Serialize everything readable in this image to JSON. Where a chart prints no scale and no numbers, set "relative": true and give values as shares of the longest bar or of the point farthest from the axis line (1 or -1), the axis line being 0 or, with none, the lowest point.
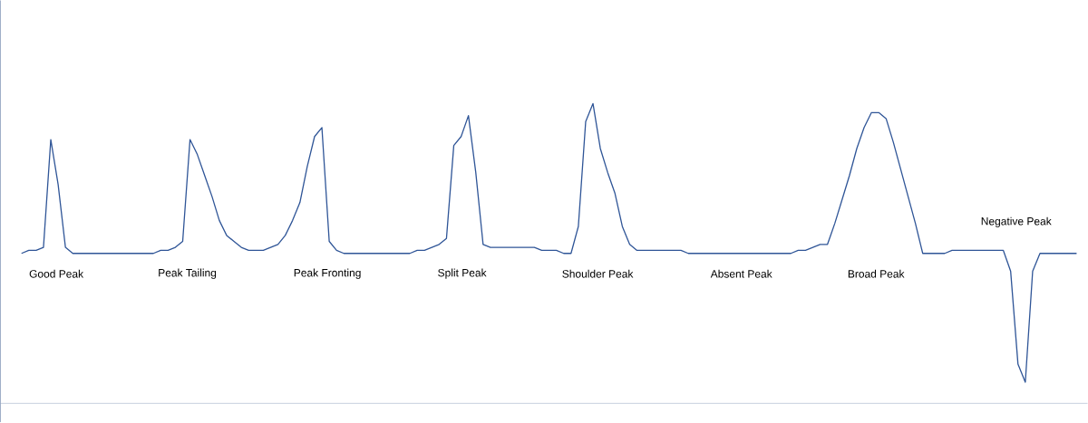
{
  "chart_data": {
    "type": "line",
    "relative": true,
    "categories": [
      null,
      null,
      null,
      null,
      null,
      null,
      null,
      null,
      null,
      null,
      null,
      null,
      null,
      null,
      null,
      null,
      null,
      null,
      null,
      null,
      null,
      null,
      null,
      null,
      null,
      null,
      null,
      null,
      null,
      null,
      null,
      null,
      null,
      null,
      null,
      null,
      null,
      null,
      null,
      null,
      null,
      null,
      null,
      null,
      null,
      null,
      null,
      null,
      null,
      null,
      null,
      null,
      null,
      null,
      null,
      null,
      null,
      null,
      null,
      null,
      null,
      null,
      null,
      null,
      null,
      null,
      null,
      null,
      null,
      null,
      null,
      null,
      null,
      null,
      null,
      null,
      null,
      null,
      null,
      null,
      null,
      null,
      null,
      null,
      null,
      null,
      null,
      null,
      null,
      null,
      null,
      null,
      null,
      null,
      null,
      null,
      null,
      null,
      null,
      null,
      null,
      null,
      null,
      null,
      null,
      null,
      null,
      null,
      null,
      null,
      null,
      null,
      null,
      null,
      null,
      null,
      null,
      null,
      null,
      null,
      null,
      null,
      null,
      null,
      null,
      null,
      null,
      null,
      null,
      null,
      null,
      null,
      null,
      null,
      null,
      null,
      null,
      null,
      null,
      null,
      null,
      null,
      null,
      null,
      null
    ],
    "series": [
      {
        "color": "#2f5597",
        "values": [
          0.5,
          0.51,
          0.51,
          0.52,
          0.88,
          0.73,
          0.52,
          0.5,
          0.5,
          0.5,
          0.5,
          0.5,
          0.5,
          0.5,
          0.5,
          0.5,
          0.5,
          0.5,
          0.5,
          0.51,
          0.51,
          0.52,
          0.54,
          0.88,
          0.83,
          0.76,
          0.69,
          0.61,
          0.56,
          0.54,
          0.52,
          0.51,
          0.51,
          0.51,
          0.52,
          0.53,
          0.56,
          0.61,
          0.67,
          0.79,
          0.89,
          0.92,
          0.54,
          0.51,
          0.5,
          0.5,
          0.5,
          0.5,
          0.5,
          0.5,
          0.5,
          0.5,
          0.5,
          0.5,
          0.51,
          0.51,
          0.52,
          0.53,
          0.55,
          0.86,
          0.89,
          0.96,
          0.77,
          0.53,
          0.52,
          0.52,
          0.52,
          0.52,
          0.52,
          0.52,
          0.52,
          0.51,
          0.51,
          0.51,
          0.5,
          0.5,
          0.59,
          0.94,
          1,
          0.85,
          0.77,
          0.7,
          0.59,
          0.53,
          0.51,
          0.51,
          0.51,
          0.51,
          0.51,
          0.51,
          0.51,
          0.5,
          0.5,
          0.5,
          0.5,
          0.5,
          0.5,
          0.5,
          0.5,
          0.5,
          0.5,
          0.5,
          0.5,
          0.5,
          0.5,
          0.5,
          0.51,
          0.51,
          0.52,
          0.53,
          0.53,
          0.6,
          0.68,
          0.76,
          0.85,
          0.92,
          0.97,
          0.97,
          0.95,
          0.87,
          0.78,
          0.69,
          0.6,
          0.5,
          0.5,
          0.5,
          0.5,
          0.51,
          0.51,
          0.51,
          0.51,
          0.51,
          0.51,
          0.51,
          0.51,
          0.44,
          0.13,
          0.07,
          0.44,
          0.5,
          0.5,
          0.5,
          0.5,
          0.5,
          0.5
        ]
      }
    ],
    "annotations": [
      "Good Peak",
      "Peak Tailing",
      "Peak Fronting",
      "Split Peak",
      "Shoulder Peak",
      "Absent Peak",
      "Broad Peak",
      "Negative Peak"
    ]
  }
}
